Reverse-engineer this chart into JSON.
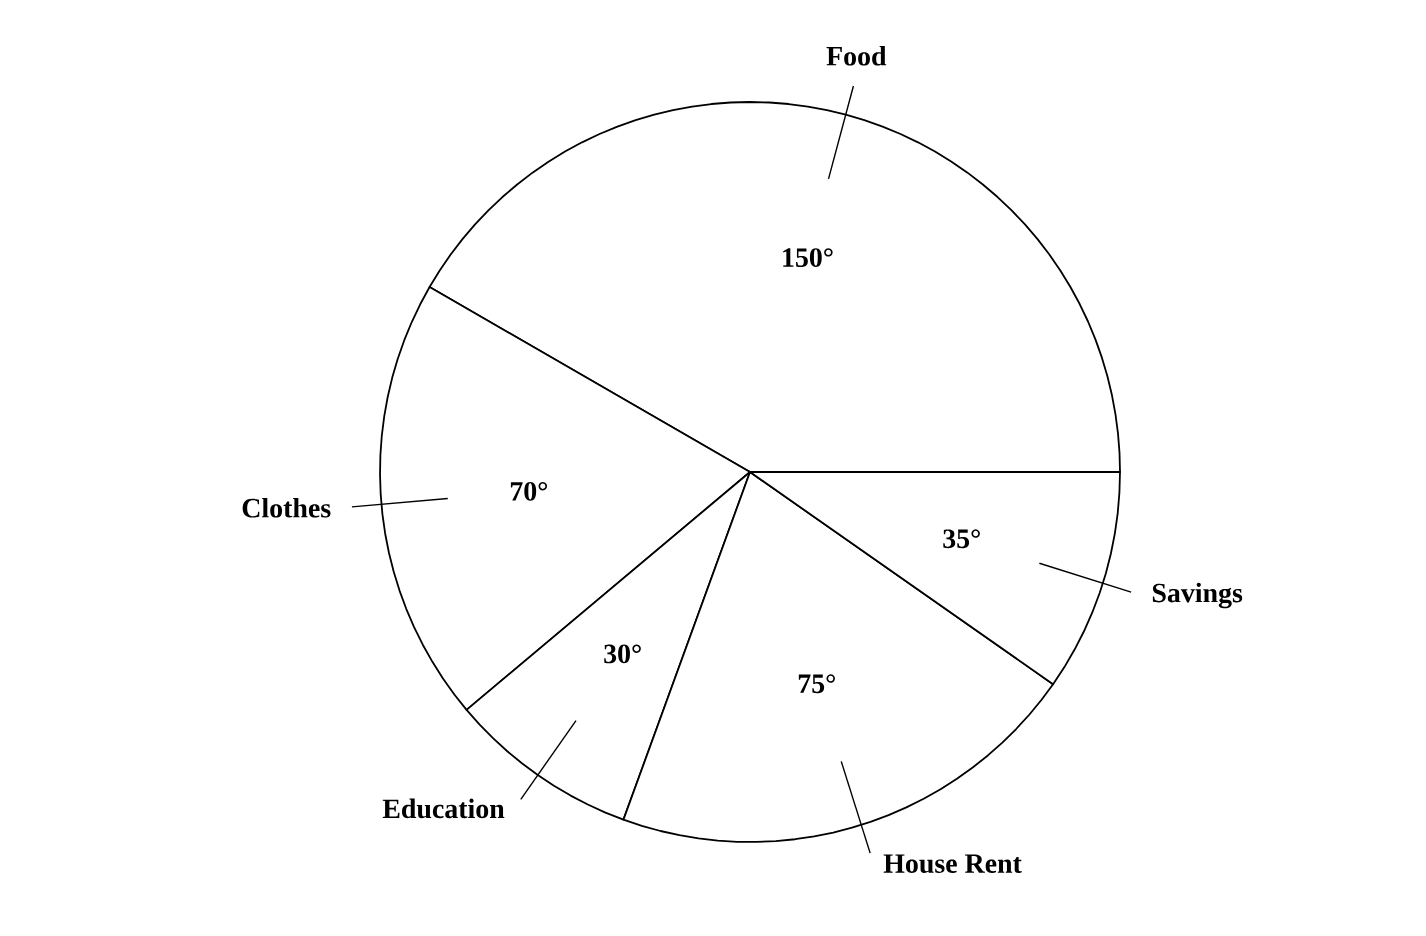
{
  "chart_data": {
    "type": "pie",
    "categories": [
      "Food",
      "Clothes",
      "Education",
      "House Rent",
      "Savings"
    ],
    "values": [
      150,
      70,
      30,
      75,
      35
    ],
    "value_labels": [
      "150°",
      "70°",
      "30°",
      "75°",
      "35°"
    ],
    "colors": [
      "#ffffff",
      "#ffffff",
      "#ffffff",
      "#ffffff",
      "#ffffff"
    ]
  }
}
